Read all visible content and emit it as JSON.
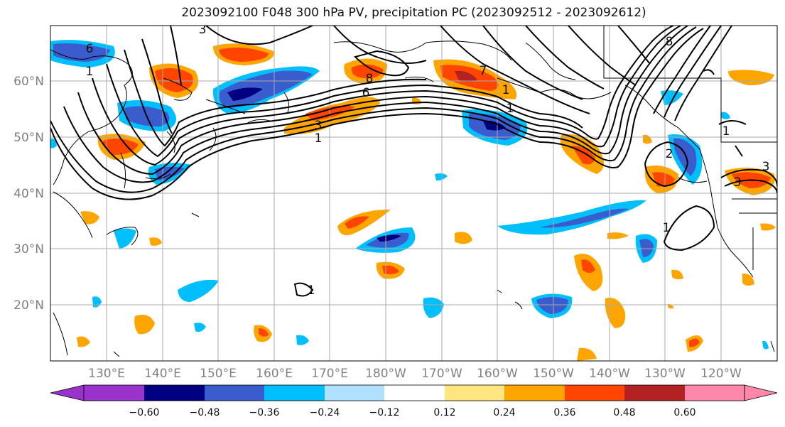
{
  "title": "2023092100 F048 300 hPa PV, precipitation PC (2023092512 - 2023092612)",
  "map": {
    "lat_labels": [
      "60°N",
      "50°N",
      "40°N",
      "30°N",
      "20°N"
    ],
    "lon_labels": [
      "130°E",
      "140°E",
      "150°E",
      "160°E",
      "170°E",
      "180°W",
      "170°W",
      "160°W",
      "150°W",
      "140°W",
      "130°W",
      "120°W"
    ],
    "contour_labels": [
      "6",
      "1",
      "3",
      "6",
      "8",
      "3",
      "1",
      "7",
      "1",
      "8",
      "3",
      "1",
      "1",
      "2",
      "3",
      "1",
      "1"
    ]
  },
  "colorbar": {
    "colors": [
      "#9933cc",
      "#000080",
      "#3a5ccc",
      "#00bfff",
      "#b0e2ff",
      "#ffffff",
      "#ffe680",
      "#ffa500",
      "#ff4500",
      "#b22222",
      "#ff88aa"
    ],
    "tick_labels": [
      "−0.60",
      "−0.48",
      "−0.36",
      "−0.24",
      "−0.12",
      "0.12",
      "0.24",
      "0.36",
      "0.48",
      "0.60"
    ]
  }
}
